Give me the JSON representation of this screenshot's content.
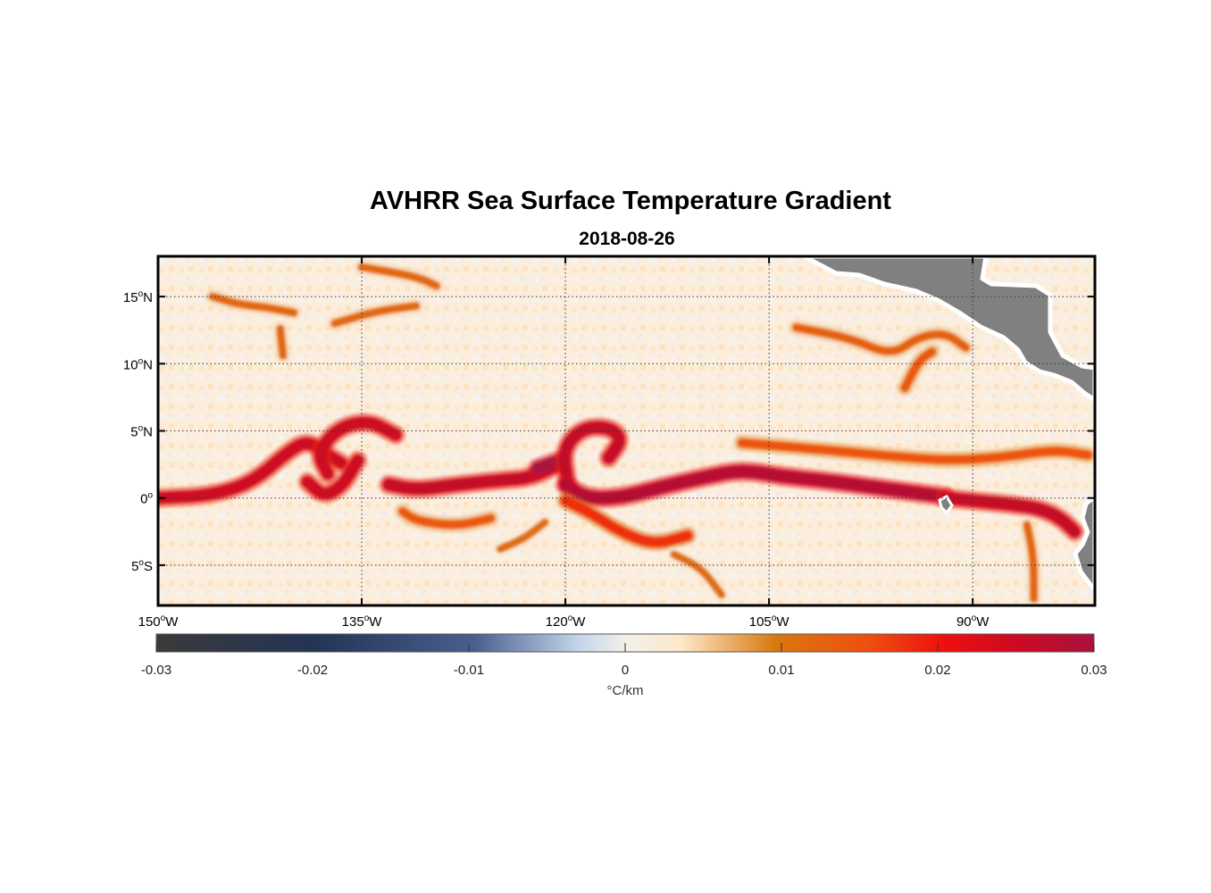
{
  "title": "AVHRR Sea Surface Temperature Gradient",
  "subtitle": "2018-08-26",
  "map": {
    "lon_range": [
      -150,
      -81
    ],
    "lat_range": [
      -8,
      18
    ],
    "lon_ticks": [
      {
        "value": -150,
        "num": "150",
        "hem": "W"
      },
      {
        "value": -135,
        "num": "135",
        "hem": "W"
      },
      {
        "value": -120,
        "num": "120",
        "hem": "W"
      },
      {
        "value": -105,
        "num": "105",
        "hem": "W"
      },
      {
        "value": -90,
        "num": "90",
        "hem": "W"
      }
    ],
    "lat_ticks": [
      {
        "value": 15,
        "num": "15",
        "hem": "N"
      },
      {
        "value": 10,
        "num": "10",
        "hem": "N"
      },
      {
        "value": 5,
        "num": "5",
        "hem": "N"
      },
      {
        "value": 0,
        "num": "0",
        "hem": ""
      },
      {
        "value": -5,
        "num": "5",
        "hem": "S"
      }
    ],
    "degree_symbol": "o",
    "grid": "dotted",
    "land_color": "#808080",
    "ocean_background": "#fbeedd"
  },
  "colorbar": {
    "range": [
      -0.03,
      0.03
    ],
    "ticks": [
      "-0.03",
      "-0.02",
      "-0.01",
      "0",
      "0.01",
      "0.02",
      "0.03"
    ],
    "tick_values": [
      -0.03,
      -0.02,
      -0.01,
      0,
      0.01,
      0.02,
      0.03
    ],
    "unit": "°C/km",
    "stops": [
      {
        "v": 0.0,
        "c": "#3a3a3a"
      },
      {
        "v": 0.17,
        "c": "#243456"
      },
      {
        "v": 0.34,
        "c": "#4a5f8f"
      },
      {
        "v": 0.45,
        "c": "#c4d4ea"
      },
      {
        "v": 0.5,
        "c": "#f3f0ea"
      },
      {
        "v": 0.56,
        "c": "#fde8c8"
      },
      {
        "v": 0.66,
        "c": "#d9780e"
      },
      {
        "v": 0.76,
        "c": "#ef4e10"
      },
      {
        "v": 0.84,
        "c": "#ee0f0f"
      },
      {
        "v": 0.92,
        "c": "#cc0a24"
      },
      {
        "v": 1.0,
        "c": "#a8123e"
      }
    ]
  },
  "chart_data": {
    "type": "heatmap",
    "variable": "sea surface temperature gradient",
    "units": "°C/km",
    "date": "2018-08-26",
    "value_range": [
      -0.03,
      0.03
    ],
    "fronts": [
      {
        "strength": 0.025,
        "points": [
          [
            -150,
            0
          ],
          [
            -146,
            0.2
          ],
          [
            -143,
            1.2
          ],
          [
            -140.5,
            3.4
          ],
          [
            -139,
            4.3
          ],
          [
            -137.5,
            3.2
          ],
          [
            -136.5,
            2.6
          ]
        ]
      },
      {
        "strength": 0.025,
        "points": [
          [
            -137.5,
            1.8
          ],
          [
            -138.3,
            3.3
          ],
          [
            -136.8,
            5.2
          ],
          [
            -134.5,
            5.8
          ],
          [
            -132.5,
            4.7
          ]
        ]
      },
      {
        "strength": 0.025,
        "points": [
          [
            -135.3,
            2.8
          ],
          [
            -136.4,
            0.9
          ],
          [
            -137.8,
            0.1
          ],
          [
            -139,
            1.2
          ]
        ]
      },
      {
        "strength": 0.026,
        "points": [
          [
            -133,
            1.0
          ],
          [
            -131,
            0.6
          ],
          [
            -128,
            1.0
          ],
          [
            -125,
            1.3
          ],
          [
            -122.5,
            1.5
          ],
          [
            -120.5,
            2.5
          ]
        ]
      },
      {
        "strength": 0.03,
        "points": [
          [
            -122,
            2.2
          ],
          [
            -120.3,
            2.8
          ]
        ]
      },
      {
        "strength": 0.026,
        "points": [
          [
            -119.8,
            1.0
          ],
          [
            -120.2,
            3.6
          ],
          [
            -118.8,
            5.2
          ],
          [
            -116.8,
            5.3
          ],
          [
            -115.8,
            4.4
          ],
          [
            -116.8,
            3.0
          ]
        ]
      },
      {
        "strength": 0.028,
        "points": [
          [
            -120,
            1.0
          ],
          [
            -118.5,
            0
          ],
          [
            -116,
            0
          ],
          [
            -113,
            0.8
          ],
          [
            -110,
            1.5
          ],
          [
            -107,
            2.1
          ],
          [
            -104,
            1.6
          ],
          [
            -101,
            1.3
          ],
          [
            -98,
            0.9
          ],
          [
            -95,
            0.5
          ],
          [
            -92,
            0.1
          ]
        ]
      },
      {
        "strength": 0.026,
        "points": [
          [
            -92,
            0
          ],
          [
            -89,
            -0.3
          ],
          [
            -87,
            -0.5
          ],
          [
            -85,
            -0.8
          ],
          [
            -83.5,
            -1.5
          ],
          [
            -82.5,
            -2.5
          ]
        ]
      },
      {
        "strength": 0.014,
        "points": [
          [
            -132,
            -1
          ],
          [
            -131,
            -1.7
          ],
          [
            -128,
            -2.1
          ],
          [
            -125.5,
            -1.5
          ]
        ]
      },
      {
        "strength": 0.018,
        "points": [
          [
            -120,
            -0.2
          ],
          [
            -118,
            -1.2
          ],
          [
            -116,
            -2.5
          ],
          [
            -113.5,
            -3.5
          ],
          [
            -111,
            -2.8
          ]
        ]
      },
      {
        "strength": 0.015,
        "points": [
          [
            -107,
            4.1
          ],
          [
            -101,
            3.6
          ],
          [
            -96,
            3.1
          ],
          [
            -92,
            2.8
          ],
          [
            -88,
            3.0
          ],
          [
            -84,
            3.6
          ],
          [
            -81.5,
            3.2
          ]
        ]
      },
      {
        "strength": 0.013,
        "points": [
          [
            -103,
            12.7
          ],
          [
            -99,
            11.9
          ],
          [
            -96,
            10.6
          ],
          [
            -94,
            12.0
          ],
          [
            -92,
            12.3
          ],
          [
            -90.5,
            11.2
          ]
        ]
      },
      {
        "strength": 0.014,
        "points": [
          [
            -95,
            8.2
          ],
          [
            -94,
            10.2
          ],
          [
            -93,
            10.9
          ]
        ]
      },
      {
        "strength": 0.012,
        "points": [
          [
            -146,
            15.0
          ],
          [
            -144,
            14.4
          ],
          [
            -142,
            14.2
          ],
          [
            -140,
            13.8
          ]
        ]
      },
      {
        "strength": 0.012,
        "points": [
          [
            -137,
            13.0
          ],
          [
            -134,
            13.9
          ],
          [
            -131,
            14.3
          ]
        ]
      },
      {
        "strength": 0.012,
        "points": [
          [
            -135,
            17.2
          ],
          [
            -131,
            16.5
          ],
          [
            -129.5,
            15.8
          ]
        ]
      },
      {
        "strength": 0.012,
        "points": [
          [
            -141,
            12.6
          ],
          [
            -140.8,
            10.6
          ]
        ]
      },
      {
        "strength": 0.011,
        "points": [
          [
            -124.8,
            -3.8
          ],
          [
            -123,
            -3.0
          ],
          [
            -121.5,
            -1.8
          ]
        ]
      },
      {
        "strength": 0.011,
        "points": [
          [
            -112,
            -4.2
          ],
          [
            -110,
            -5.2
          ],
          [
            -108.5,
            -7.2
          ]
        ]
      },
      {
        "strength": 0.012,
        "points": [
          [
            -86,
            -2.0
          ],
          [
            -85.5,
            -4.5
          ],
          [
            -85.5,
            -7.5
          ]
        ]
      }
    ]
  }
}
